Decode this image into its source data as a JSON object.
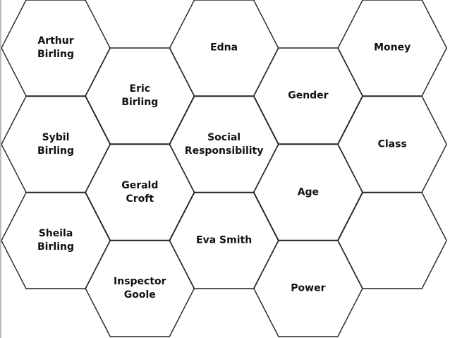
{
  "colors": {
    "stroke": "#222222",
    "fill": "#ffffff"
  },
  "hexagons": [
    {
      "col": 0,
      "row": 0,
      "label": "Arthur\nBirling"
    },
    {
      "col": 0,
      "row": 1,
      "label": "Sybil\nBirling"
    },
    {
      "col": 0,
      "row": 2,
      "label": "Sheila\nBirling"
    },
    {
      "col": 1,
      "row": 0,
      "label": "Eric\nBirling"
    },
    {
      "col": 1,
      "row": 1,
      "label": "Gerald\nCroft"
    },
    {
      "col": 1,
      "row": 2,
      "label": "Inspector\nGoole"
    },
    {
      "col": 2,
      "row": 0,
      "label": "Edna"
    },
    {
      "col": 2,
      "row": 1,
      "label": "Social\nResponsibility"
    },
    {
      "col": 2,
      "row": 2,
      "label": "Eva Smith"
    },
    {
      "col": 3,
      "row": 0,
      "label": "Gender"
    },
    {
      "col": 3,
      "row": 1,
      "label": "Age"
    },
    {
      "col": 3,
      "row": 2,
      "label": "Power"
    },
    {
      "col": 4,
      "row": 0,
      "label": "Money"
    },
    {
      "col": 4,
      "row": 1,
      "label": "Class"
    },
    {
      "col": 4,
      "row": 2,
      "label": ""
    }
  ]
}
